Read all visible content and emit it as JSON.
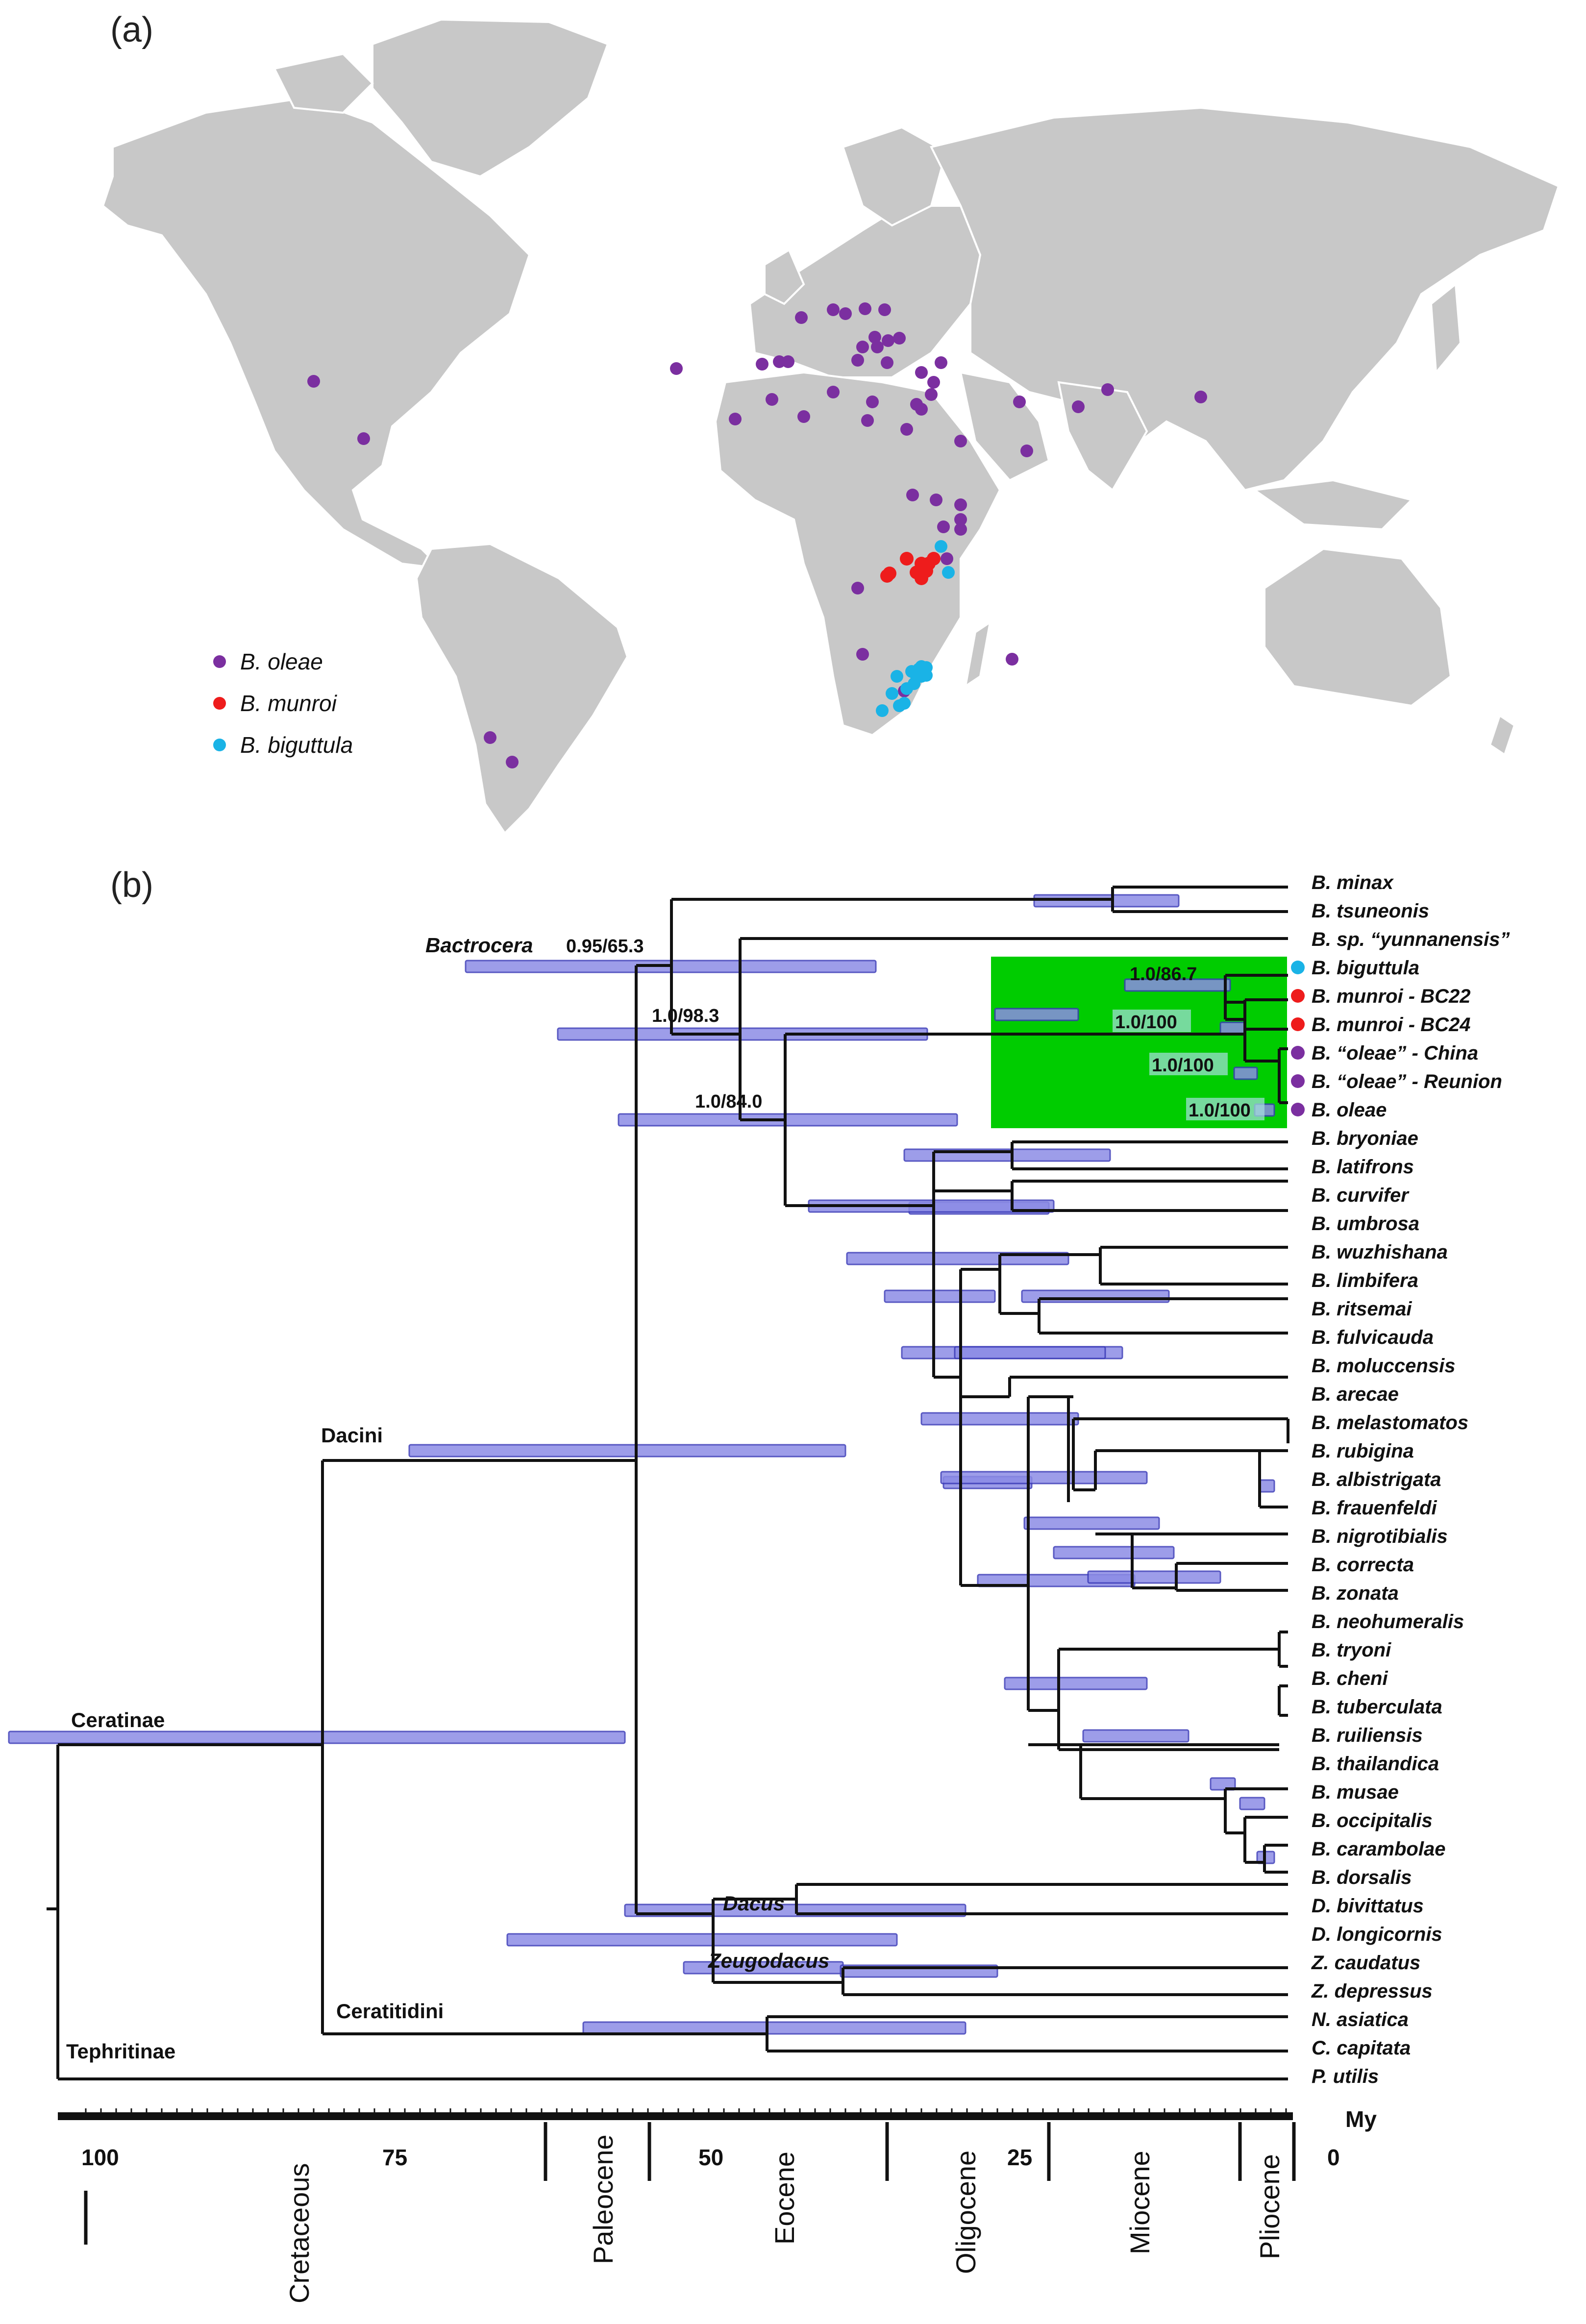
{
  "panels": {
    "a": "(a)",
    "b": "(b)"
  },
  "colors": {
    "oleae": "#7b2fa0",
    "munroi": "#ee1c1c",
    "biguttula": "#1ab3e6",
    "highlight": "#00cc00",
    "land": "#c8c8c8",
    "hpd_bar": "#8c8ce6"
  },
  "legend": [
    {
      "label": "B. oleae",
      "color": "#7b2fa0"
    },
    {
      "label": "B. munroi",
      "color": "#ee1c1c"
    },
    {
      "label": "B. biguttula",
      "color": "#1ab3e6"
    }
  ],
  "tree": {
    "tips": [
      "B. minax",
      "B. tsuneonis",
      "B. sp. “yunnanensis”",
      "B. biguttula",
      "B. munroi - BC22",
      "B. munroi - BC24",
      "B. “oleae” - China",
      "B. “oleae” - Reunion",
      "B. oleae",
      "B. bryoniae",
      "B. latifrons",
      "B. curvifer",
      "B. umbrosa",
      "B. wuzhishana",
      "B. limbifera",
      "B. ritsemai",
      "B. fulvicauda",
      "B. moluccensis",
      "B. arecae",
      "B. melastomatos",
      "B. rubigina",
      "B. albistrigata",
      "B. frauenfeldi",
      "B. nigrotibialis",
      "B. correcta",
      "B. zonata",
      "B. neohumeralis",
      "B. tryoni",
      "B. cheni",
      "B. tuberculata",
      "B. ruiliensis",
      "B. thailandica",
      "B. musae",
      "B. occipitalis",
      "B. carambolae",
      "B. dorsalis",
      "D. bivittatus",
      "D. longicornis",
      "Z. caudatus",
      "Z. depressus",
      "N. asiatica",
      "C. capitata",
      "P. utilis"
    ],
    "tip_dots": {
      "B. biguttula": "#1ab3e6",
      "B. munroi - BC22": "#ee1c1c",
      "B. munroi - BC24": "#ee1c1c",
      "B. “oleae” - China": "#7b2fa0",
      "B. “oleae” - Reunion": "#7b2fa0",
      "B. oleae": "#7b2fa0"
    },
    "node_support": [
      "0.95/65.3",
      "1.0/98.3",
      "1.0/84.0",
      "1.0/86.7",
      "1.0/100",
      "1.0/100",
      "1.0/100"
    ],
    "clades": [
      "Bactrocera",
      "Dacini",
      "Ceratinae",
      "Dacus",
      "Zeugodacus",
      "Ceratitidini",
      "Tephritinae"
    ]
  },
  "axis": {
    "unit": "My",
    "ticks": [
      "100",
      "75",
      "50",
      "25",
      "0"
    ],
    "epochs": [
      "Cretaceous",
      "Paleocene",
      "Eocene",
      "Oligocene",
      "Miocene",
      "Pliocene"
    ]
  }
}
